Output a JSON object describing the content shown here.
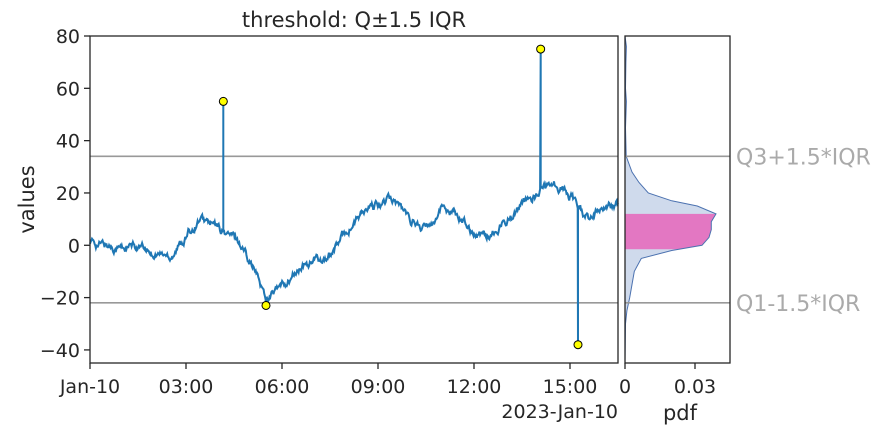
{
  "chart_data": [
    {
      "type": "line",
      "title": "threshold: Q±1.5 IQR",
      "ylabel": "values",
      "xlabel": "",
      "x_offset_label": "2023-Jan-10",
      "xlim_hours": [
        0,
        16.5
      ],
      "ylim": [
        -45,
        80
      ],
      "x_tick_labels": [
        "Jan-10",
        "03:00",
        "06:00",
        "09:00",
        "12:00",
        "15:00"
      ],
      "x_tick_hours": [
        0,
        3,
        6,
        9,
        12,
        15
      ],
      "y_ticks": [
        -40,
        -20,
        0,
        20,
        40,
        60,
        80
      ],
      "grid": false,
      "line_color": "#1f77b4",
      "series": [
        {
          "values_hourly_approx": [
            [
              0.0,
              1
            ],
            [
              0.5,
              0
            ],
            [
              1.0,
              -1
            ],
            [
              1.5,
              -1
            ],
            [
              2.0,
              -3
            ],
            [
              2.5,
              -4
            ],
            [
              3.0,
              3
            ],
            [
              3.4,
              10
            ],
            [
              3.8,
              8
            ],
            [
              4.2,
              5
            ],
            [
              4.6,
              2
            ],
            [
              5.0,
              -5
            ],
            [
              5.5,
              -20
            ],
            [
              6.0,
              -16
            ],
            [
              6.5,
              -10
            ],
            [
              7.0,
              -6
            ],
            [
              7.5,
              -4
            ],
            [
              8.0,
              5
            ],
            [
              8.5,
              12
            ],
            [
              9.0,
              15
            ],
            [
              9.5,
              18
            ],
            [
              10.0,
              10
            ],
            [
              10.5,
              6
            ],
            [
              11.0,
              15
            ],
            [
              11.5,
              12
            ],
            [
              12.0,
              5
            ],
            [
              12.5,
              4
            ],
            [
              13.0,
              10
            ],
            [
              13.5,
              15
            ],
            [
              14.0,
              20
            ],
            [
              14.4,
              25
            ],
            [
              14.8,
              22
            ],
            [
              15.2,
              16
            ],
            [
              15.6,
              10
            ],
            [
              16.0,
              15
            ],
            [
              16.5,
              16
            ]
          ]
        }
      ],
      "outliers": [
        {
          "time": "04:10",
          "value": 55
        },
        {
          "time": "05:30",
          "value": -23
        },
        {
          "time": "14:05",
          "value": 75
        },
        {
          "time": "15:15",
          "value": -38
        }
      ],
      "outlier_marker_color": "#ffff00",
      "thresholds": [
        {
          "label": "Q3+1.5*IQR",
          "value": 34
        },
        {
          "label": "Q1-1.5*IQR",
          "value": -22
        }
      ],
      "threshold_color": "#999999"
    },
    {
      "type": "area",
      "orientation": "horizontal",
      "xlabel": "pdf",
      "x_ticks": [
        0,
        0.03
      ],
      "x_tick_labels": [
        "0",
        "0.03"
      ],
      "xlim": [
        0,
        0.045
      ],
      "ylim": [
        -45,
        80
      ],
      "density_points_approx": [
        [
          -45,
          0.0
        ],
        [
          -30,
          0.0002
        ],
        [
          -25,
          0.0008
        ],
        [
          -20,
          0.002
        ],
        [
          -15,
          0.003
        ],
        [
          -10,
          0.004
        ],
        [
          -5,
          0.007
        ],
        [
          -2,
          0.02
        ],
        [
          0,
          0.033
        ],
        [
          3,
          0.036
        ],
        [
          6,
          0.037
        ],
        [
          9,
          0.037
        ],
        [
          12,
          0.039
        ],
        [
          15,
          0.031
        ],
        [
          17,
          0.02
        ],
        [
          20,
          0.01
        ],
        [
          24,
          0.006
        ],
        [
          28,
          0.003
        ],
        [
          34,
          0.0005
        ],
        [
          45,
          0.0002
        ],
        [
          55,
          0.0006
        ],
        [
          60,
          0.0002
        ],
        [
          70,
          0.0004
        ],
        [
          76,
          0.0006
        ],
        [
          80,
          0.0
        ]
      ],
      "fill_color": "#cfdaec",
      "edge_color": "#4c72b0",
      "highlight_band": [
        -1.5,
        12
      ],
      "highlight_color": "#e377c2"
    }
  ]
}
